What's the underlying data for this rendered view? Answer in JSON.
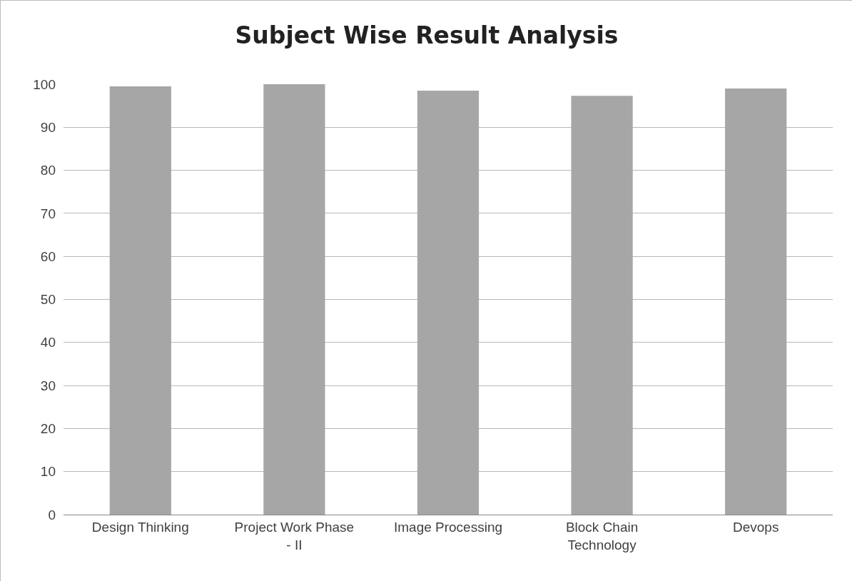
{
  "chart_data": {
    "type": "bar",
    "title": "Subject Wise Result Analysis",
    "categories": [
      "Design Thinking",
      "Project Work Phase - II",
      "Image Processing",
      "Block Chain Technology",
      "Devops"
    ],
    "values": [
      99.5,
      100,
      98.5,
      97.3,
      99
    ],
    "color": "#a6a6a6",
    "ylim": [
      0,
      100
    ],
    "yticks": [
      0,
      10,
      20,
      30,
      40,
      50,
      60,
      70,
      80,
      90,
      100
    ],
    "grid": "y",
    "legend": false
  }
}
